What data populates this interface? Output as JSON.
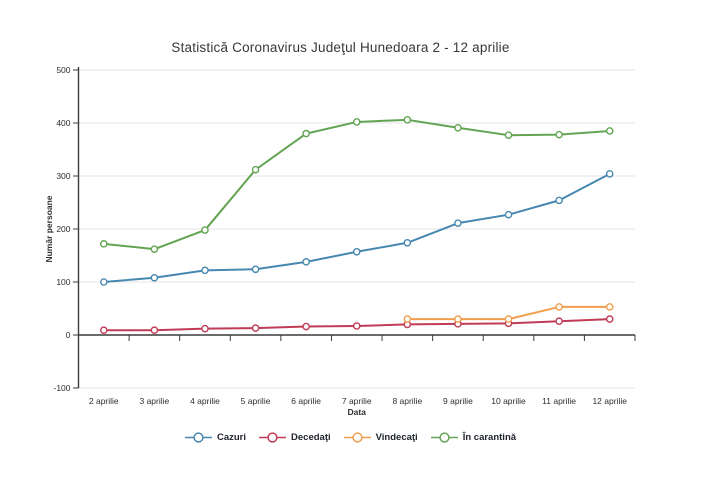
{
  "chart": {
    "title": "Statistică Coronavirus Judeţul Hunedoara 2 - 12 aprilie"
  },
  "chart_data": {
    "type": "line",
    "title": "Statistică Coronavirus Judeţul Hunedoara 2 - 12 aprilie",
    "xlabel": "Data",
    "ylabel": "Număr persoane",
    "categories": [
      "2 aprilie",
      "3 aprilie",
      "4 aprilie",
      "5 aprilie",
      "6 aprilie",
      "7 aprilie",
      "8 aprilie",
      "9 aprilie",
      "10 aprilie",
      "11 aprilie",
      "12 aprilie"
    ],
    "series": [
      {
        "name": "Cazuri",
        "color": "#4788b0",
        "values": [
          100,
          108,
          122,
          124,
          138,
          157,
          174,
          211,
          227,
          254,
          304
        ]
      },
      {
        "name": "Decedaţi",
        "color": "#c03b55",
        "values": [
          9,
          9,
          12,
          13,
          16,
          17,
          20,
          21,
          22,
          26,
          30
        ]
      },
      {
        "name": "Vindecaţi",
        "color": "#f19e4d",
        "values": [
          null,
          null,
          null,
          null,
          null,
          null,
          30,
          30,
          30,
          53,
          53
        ]
      },
      {
        "name": "În carantină",
        "color": "#63a453",
        "values": [
          172,
          162,
          198,
          312,
          380,
          402,
          406,
          391,
          377,
          378,
          385
        ]
      }
    ],
    "ylim": [
      -100,
      500
    ],
    "yticks": [
      -100,
      0,
      100,
      200,
      300,
      400,
      500
    ],
    "grid": true,
    "legend_position": "bottom",
    "marker": "open-circle"
  },
  "style": {
    "grid_color": "#e5e5e5",
    "axis_color": "#3a3a3a",
    "tick_text_color": "#2e2e2e",
    "title_color": "#383838",
    "background": "#ffffff"
  }
}
